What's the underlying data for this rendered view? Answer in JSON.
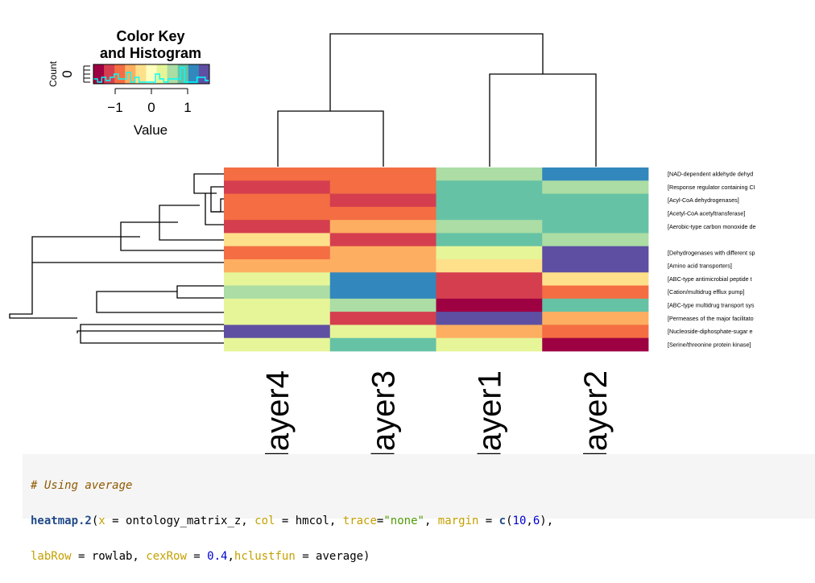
{
  "chart_data": {
    "type": "heatmap",
    "columns": [
      "layer4",
      "layer3",
      "layer1",
      "layer2"
    ],
    "rows": [
      {
        "label": "[NAD-dependent aldehyde dehyd",
        "values": [
          -1.0,
          -0.8,
          0.6,
          1.3
        ]
      },
      {
        "label": "[Response regulator containing CI",
        "values": [
          -1.1,
          -0.9,
          0.9,
          0.7
        ]
      },
      {
        "label": "[Acyl-CoA dehydrogenases]",
        "values": [
          -0.9,
          -1.1,
          0.8,
          0.8
        ]
      },
      {
        "label": "[Acetyl-CoA acetyltransferase]",
        "values": [
          -1.0,
          -1.0,
          0.9,
          0.8
        ]
      },
      {
        "label": "[Aerobic-type carbon monoxide de",
        "values": [
          -1.3,
          -0.6,
          0.7,
          0.9
        ]
      },
      {
        "label": "",
        "values": [
          -0.4,
          -1.3,
          0.9,
          0.6
        ]
      },
      {
        "label": "[Dehydrogenases with different sp",
        "values": [
          -1.0,
          -0.6,
          0.2,
          1.4
        ]
      },
      {
        "label": "[Amino acid transporters]",
        "values": [
          -0.6,
          -0.6,
          -0.4,
          1.6
        ]
      },
      {
        "label": "[ABC-type antimicrobial peptide t",
        "values": [
          0.3,
          1.3,
          -1.3,
          -0.4
        ]
      },
      {
        "label": "[Cation/multidrug efflux pump]",
        "values": [
          0.5,
          1.3,
          -1.1,
          -0.8
        ]
      },
      {
        "label": "[ABC-type multidrug transport sys",
        "values": [
          0.2,
          0.5,
          -1.6,
          0.8
        ]
      },
      {
        "label": "[Permeases of the major facilitato",
        "values": [
          0.2,
          -1.2,
          1.4,
          -0.6
        ]
      },
      {
        "label": "[Nucleoside-diphosphate-sugar e",
        "values": [
          1.4,
          0.2,
          -0.6,
          -1.0
        ]
      },
      {
        "label": "[Serine/threonine protein kinase]",
        "values": [
          0.2,
          0.9,
          0.3,
          -1.6
        ]
      }
    ],
    "palette": [
      "#9e0142",
      "#d53e4f",
      "#f46d43",
      "#fdae61",
      "#fee08b",
      "#ffffbf",
      "#e6f598",
      "#abdda4",
      "#66c2a5",
      "#3288bd",
      "#5e4fa2"
    ],
    "color_range": [
      -1.6,
      1.6
    ],
    "key": {
      "title_line1": "Color Key",
      "title_line2": "and Histogram",
      "ylabel": "Count",
      "ytick": "0",
      "xlabel": "Value",
      "xticks": [
        "−1",
        "0",
        "1"
      ],
      "xtick_values": [
        -1,
        0,
        1
      ],
      "xlim": [
        -1.6,
        1.6
      ]
    }
  },
  "code": {
    "comment": "# Using average",
    "fn": "heatmap.2",
    "line1_a": "(",
    "arg_x": "x",
    "line1_b": " = ontology_matrix_z, ",
    "arg_col": "col",
    "line1_c": " = hmcol, ",
    "arg_trace": "trace",
    "line1_d": "=",
    "str_none": "\"none\"",
    "line1_e": ", ",
    "arg_margin": "margin",
    "line1_f": " = ",
    "fn_c": "c",
    "line1_g": "(",
    "num_10": "10",
    "line1_h": ",",
    "num_6": "6",
    "line1_i": "),",
    "arg_labrow": "labRow",
    "line2_a": " = rowlab, ",
    "arg_cexrow": "cexRow",
    "line2_b": " = ",
    "num_04": "0.4",
    "line2_c": ",",
    "arg_hclust": "hclustfun",
    "line2_d": " = average)"
  }
}
